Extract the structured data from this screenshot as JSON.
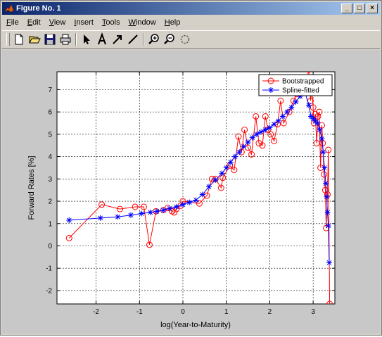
{
  "window": {
    "title": "Figure No. 1",
    "controls": {
      "minimize": "_",
      "maximize": "□",
      "close": "×"
    }
  },
  "menu": {
    "items": [
      "File",
      "Edit",
      "View",
      "Insert",
      "Tools",
      "Window",
      "Help"
    ]
  },
  "toolbar": {
    "tools": [
      {
        "name": "new-figure-icon"
      },
      {
        "name": "open-file-icon"
      },
      {
        "name": "save-icon"
      },
      {
        "name": "print-icon"
      },
      {
        "name": "select-arrow-icon"
      },
      {
        "name": "insert-text-icon"
      },
      {
        "name": "insert-arrow-icon"
      },
      {
        "name": "insert-line-icon"
      },
      {
        "name": "zoom-in-icon"
      },
      {
        "name": "zoom-out-icon"
      },
      {
        "name": "rotate-icon"
      }
    ]
  },
  "chart_data": {
    "type": "line",
    "xlabel": "log(Year-to-Maturity)",
    "ylabel": "Forward Rates [%]",
    "xlim": [
      -2.9,
      3.5
    ],
    "ylim": [
      -2.6,
      7.8
    ],
    "xticks": [
      -2,
      -1,
      0,
      1,
      2,
      3
    ],
    "yticks": [
      -2,
      -1,
      0,
      1,
      2,
      3,
      4,
      5,
      6,
      7
    ],
    "grid": true,
    "legend_position": "top-right",
    "series": [
      {
        "name": "Bootstrapped",
        "color": "#ff0000",
        "marker": "circle",
        "x": [
          -2.62,
          -1.87,
          -1.45,
          -1.1,
          -0.9,
          -0.77,
          -0.62,
          -0.45,
          -0.35,
          -0.25,
          -0.2,
          -0.15,
          -0.05,
          0.0,
          0.38,
          0.55,
          0.67,
          0.75,
          0.88,
          0.92,
          1.08,
          1.18,
          1.28,
          1.35,
          1.42,
          1.5,
          1.58,
          1.68,
          1.75,
          1.83,
          1.9,
          1.96,
          2.02,
          2.1,
          2.18,
          2.25,
          2.32,
          2.45,
          2.55,
          2.62,
          2.7,
          2.78,
          2.82,
          2.86,
          2.9,
          2.94,
          2.97,
          3.0,
          3.02,
          3.05,
          3.08,
          3.11,
          3.14,
          3.17,
          3.2,
          3.22,
          3.25,
          3.28,
          3.3,
          3.33,
          3.35,
          3.38
        ],
        "y": [
          0.35,
          1.85,
          1.65,
          1.75,
          1.75,
          0.05,
          1.55,
          1.6,
          1.7,
          1.55,
          1.5,
          1.65,
          1.8,
          2.0,
          1.9,
          2.25,
          3.0,
          3.0,
          2.6,
          3.05,
          3.6,
          3.4,
          4.9,
          4.2,
          5.2,
          4.4,
          4.1,
          5.8,
          4.6,
          4.5,
          5.8,
          5.2,
          5.0,
          4.7,
          5.45,
          6.5,
          5.5,
          6.0,
          6.5,
          6.8,
          7.3,
          7.5,
          7.2,
          7.5,
          7.9,
          6.5,
          7.0,
          6.2,
          5.5,
          5.9,
          4.6,
          5.8,
          6.0,
          3.5,
          5.4,
          4.6,
          3.2,
          2.5,
          0.8,
          2.3,
          4.3,
          -2.6
        ]
      },
      {
        "name": "Spline-fitted",
        "color": "#0000ff",
        "marker": "star",
        "x": [
          -2.62,
          -1.9,
          -1.5,
          -1.2,
          -0.95,
          -0.75,
          -0.6,
          -0.45,
          -0.3,
          -0.15,
          0.0,
          0.15,
          0.3,
          0.45,
          0.6,
          0.75,
          0.9,
          1.0,
          1.1,
          1.2,
          1.3,
          1.4,
          1.5,
          1.6,
          1.7,
          1.8,
          1.9,
          2.0,
          2.1,
          2.2,
          2.3,
          2.4,
          2.5,
          2.6,
          2.7,
          2.8,
          2.9,
          2.95,
          3.0,
          3.05,
          3.1,
          3.15,
          3.2,
          3.23,
          3.26,
          3.29,
          3.31,
          3.33,
          3.35,
          3.37
        ],
        "y": [
          1.15,
          1.25,
          1.3,
          1.38,
          1.45,
          1.5,
          1.55,
          1.6,
          1.68,
          1.75,
          1.85,
          1.95,
          2.05,
          2.3,
          2.65,
          2.95,
          3.25,
          3.5,
          3.75,
          4.0,
          4.2,
          4.45,
          4.65,
          4.85,
          5.0,
          5.1,
          5.2,
          5.3,
          5.45,
          5.6,
          5.8,
          6.0,
          6.2,
          6.45,
          6.7,
          6.95,
          6.3,
          5.8,
          5.7,
          5.6,
          5.5,
          5.2,
          4.8,
          4.2,
          3.5,
          2.8,
          2.2,
          1.5,
          0.9,
          -0.75
        ]
      }
    ]
  }
}
